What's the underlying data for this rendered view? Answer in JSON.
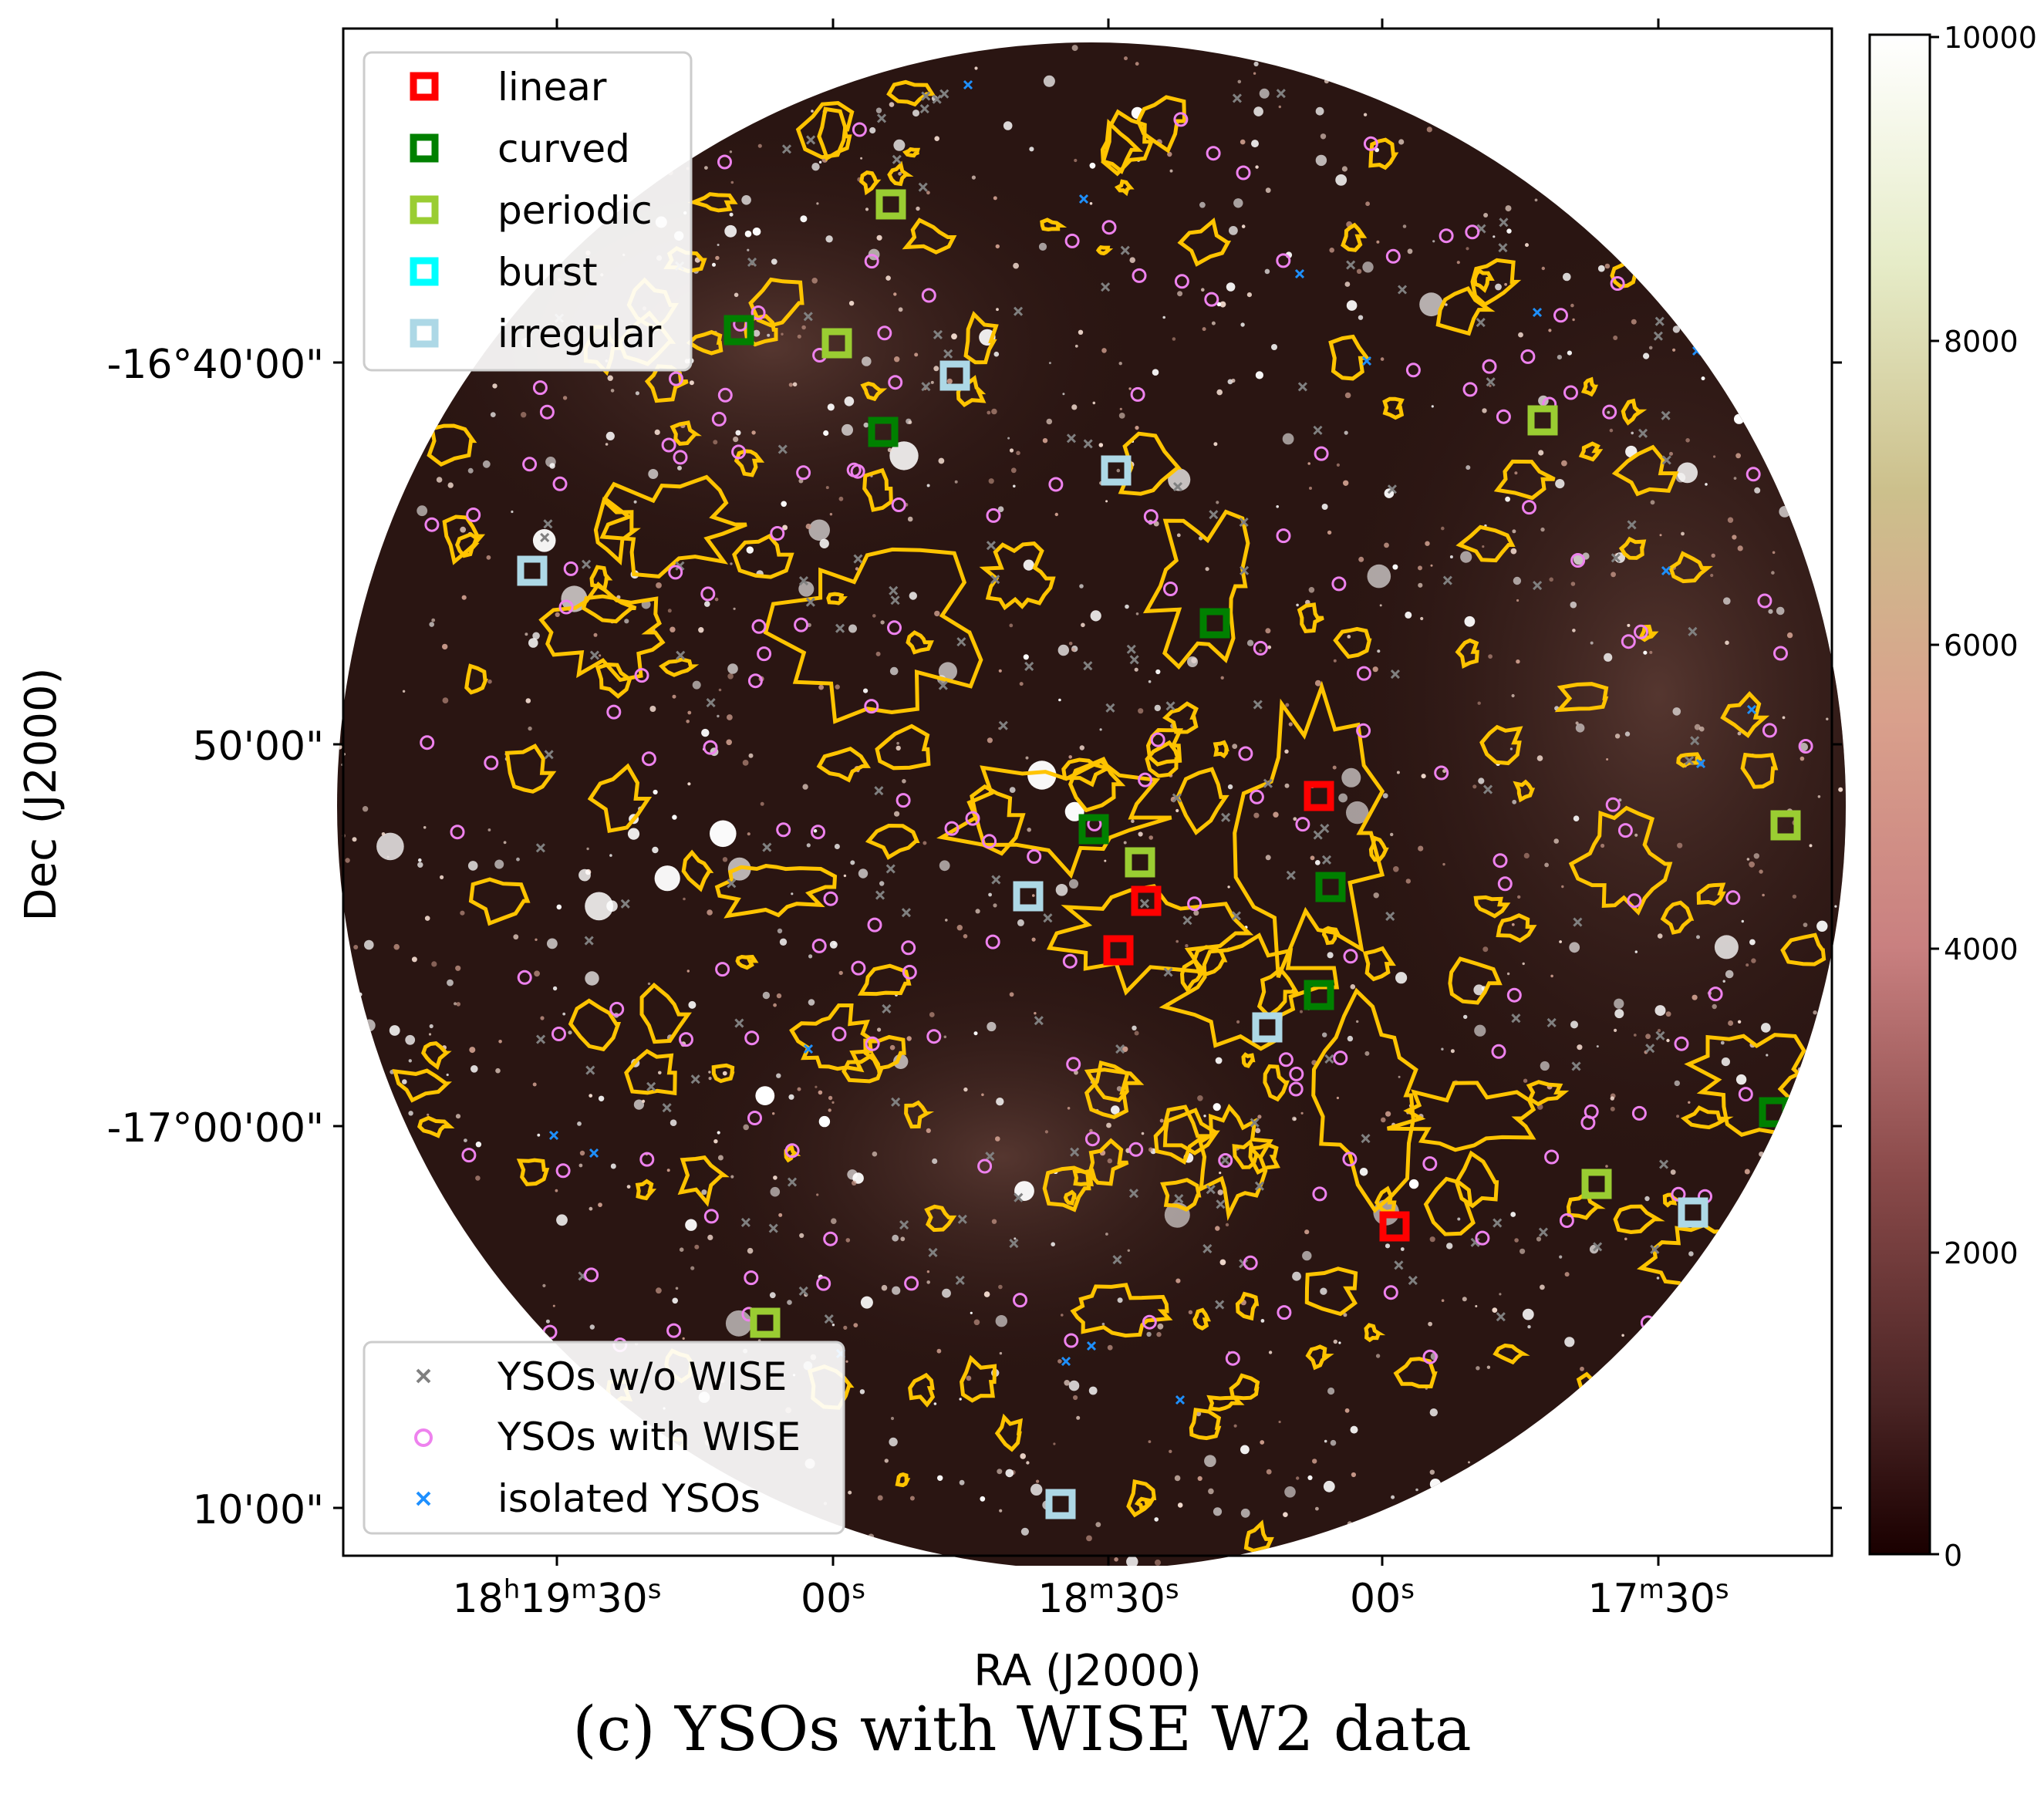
{
  "figure": {
    "caption": "(c) YSOs with WISE W2 data",
    "xlabel": "RA (J2000)",
    "ylabel": "Dec (J2000)",
    "colors": {
      "background_sky": "#2a1512",
      "contour": "#ffc400",
      "linear": "#ff0000",
      "curved": "#008000",
      "periodic": "#9acd32",
      "burst": "#00ffff",
      "irregular": "#add8e6",
      "ysos_wo_wise": "#808080",
      "ysos_with_wise": "#ee82ee",
      "isolated_ysos": "#1e90ff"
    }
  },
  "axes": {
    "ra_ticks": [
      {
        "main": "18",
        "sup1": "h",
        "mid": "19",
        "sup2": "m",
        "sec": "30",
        "sup3": "s"
      },
      {
        "main": "",
        "sup1": "",
        "mid": "",
        "sup2": "",
        "sec": "00",
        "sup3": "s"
      },
      {
        "main": "",
        "sup1": "",
        "mid": "18",
        "sup2": "m",
        "sec": "30",
        "sup3": "s"
      },
      {
        "main": "",
        "sup1": "",
        "mid": "",
        "sup2": "",
        "sec": "00",
        "sup3": "s"
      },
      {
        "main": "",
        "sup1": "",
        "mid": "17",
        "sup2": "m",
        "sec": "30",
        "sup3": "s"
      }
    ],
    "dec_ticks": [
      "-16°40'00\"",
      "50'00\"",
      "-17°00'00\"",
      "10'00\""
    ]
  },
  "colorbar": {
    "ticks": [
      "10000",
      "8000",
      "6000",
      "4000",
      "2000",
      "0"
    ],
    "range": [
      0,
      10000
    ]
  },
  "legend_top": {
    "items": [
      {
        "label": "linear",
        "color": "#ff0000"
      },
      {
        "label": "curved",
        "color": "#008000"
      },
      {
        "label": "periodic",
        "color": "#9acd32"
      },
      {
        "label": "burst",
        "color": "#00ffff"
      },
      {
        "label": "irregular",
        "color": "#add8e6"
      }
    ]
  },
  "legend_bottom": {
    "items": [
      {
        "label": "YSOs w/o WISE",
        "marker": "x",
        "color": "#808080"
      },
      {
        "label": "YSOs with WISE",
        "marker": "circle",
        "color": "#ee82ee"
      },
      {
        "label": "isolated YSOs",
        "marker": "x",
        "color": "#1e90ff"
      }
    ]
  },
  "variable_ysos": [
    {
      "type": "linear",
      "color": "#ff0000"
    },
    {
      "type": "linear",
      "color": "#ff0000"
    },
    {
      "type": "linear",
      "color": "#ff0000"
    },
    {
      "type": "linear",
      "color": "#ff0000"
    },
    {
      "type": "curved",
      "color": "#008000"
    },
    {
      "type": "curved",
      "color": "#008000"
    },
    {
      "type": "curved",
      "color": "#008000"
    },
    {
      "type": "curved",
      "color": "#008000"
    },
    {
      "type": "curved",
      "color": "#008000"
    },
    {
      "type": "curved",
      "color": "#008000"
    },
    {
      "type": "curved",
      "color": "#008000"
    },
    {
      "type": "periodic",
      "color": "#9acd32"
    },
    {
      "type": "periodic",
      "color": "#9acd32"
    },
    {
      "type": "periodic",
      "color": "#9acd32"
    },
    {
      "type": "periodic",
      "color": "#9acd32"
    },
    {
      "type": "periodic",
      "color": "#9acd32"
    },
    {
      "type": "periodic",
      "color": "#9acd32"
    },
    {
      "type": "periodic",
      "color": "#9acd32"
    },
    {
      "type": "irregular",
      "color": "#add8e6"
    },
    {
      "type": "irregular",
      "color": "#add8e6"
    },
    {
      "type": "irregular",
      "color": "#add8e6"
    },
    {
      "type": "irregular",
      "color": "#add8e6"
    },
    {
      "type": "irregular",
      "color": "#add8e6"
    },
    {
      "type": "irregular",
      "color": "#add8e6"
    },
    {
      "type": "irregular",
      "color": "#add8e6"
    }
  ]
}
